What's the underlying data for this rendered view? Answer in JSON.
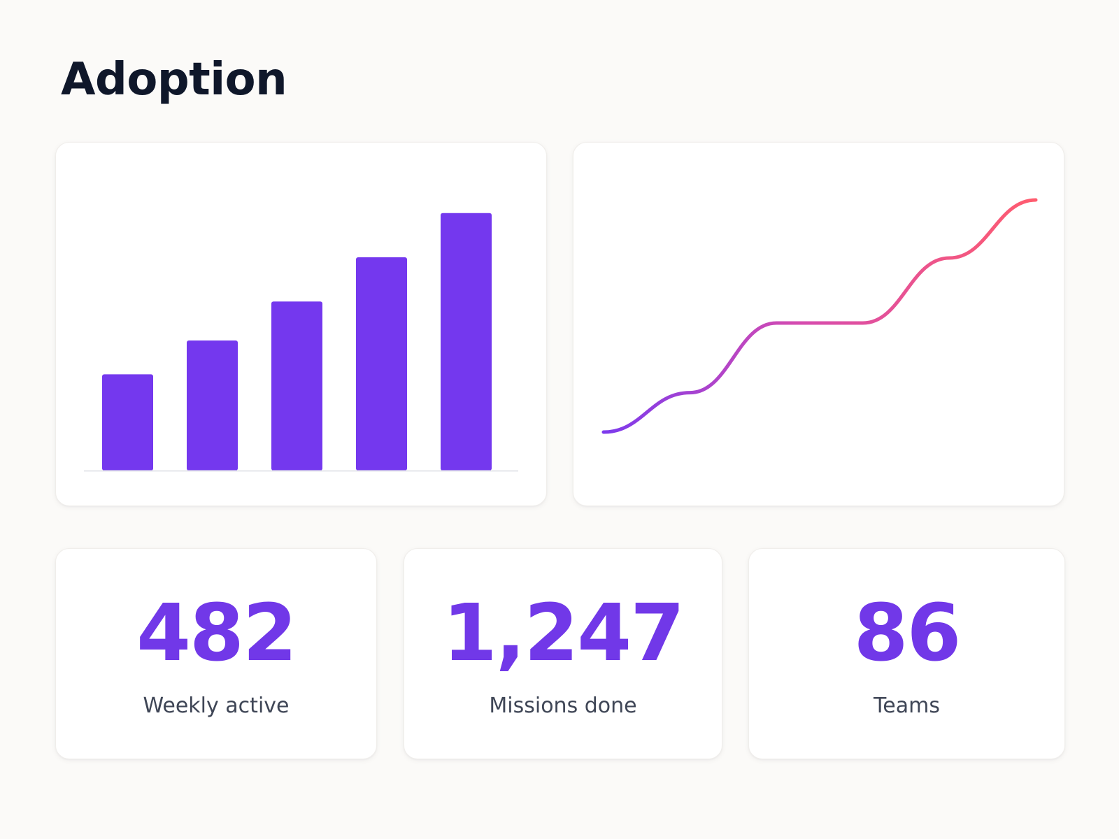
{
  "page": {
    "title": "Adoption"
  },
  "colors": {
    "accent": "#7438ee",
    "stat_value": "#7138e8",
    "line_start": "#7c3aed",
    "line_end": "#ff5c6e",
    "baseline": "#e5e7eb",
    "background": "#fbfaf8",
    "card": "#ffffff"
  },
  "chart_data": [
    {
      "type": "bar",
      "categories": [
        "",
        "",
        "",
        "",
        ""
      ],
      "values": [
        37,
        50,
        65,
        82,
        99
      ],
      "ylim": [
        0,
        100
      ],
      "title": "",
      "xlabel": "",
      "ylabel": "",
      "grid": false
    },
    {
      "type": "line",
      "x": [
        0,
        1,
        2,
        3,
        4,
        5
      ],
      "y": [
        3,
        20,
        50,
        50,
        78,
        103
      ],
      "ylim": [
        0,
        100
      ],
      "title": "",
      "xlabel": "",
      "ylabel": "",
      "grid": false,
      "stroke": "gradient purple to coral"
    }
  ],
  "stats": [
    {
      "value": "482",
      "label": "Weekly active"
    },
    {
      "value": "1,247",
      "label": "Missions done"
    },
    {
      "value": "86",
      "label": "Teams"
    }
  ]
}
